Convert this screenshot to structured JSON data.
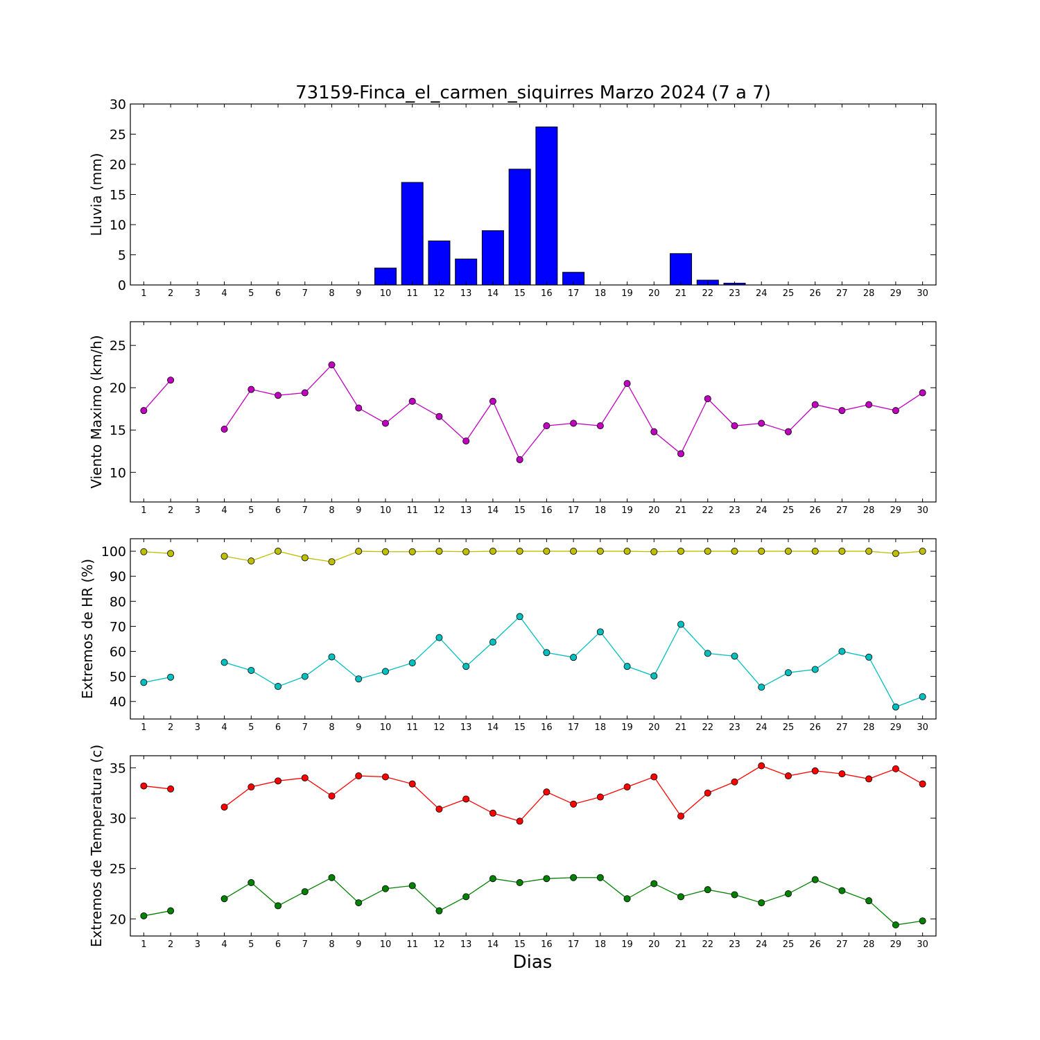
{
  "title": "73159-Finca_el_carmen_siquirres Marzo 2024  (7 a 7)",
  "xlabel": "Dias",
  "chart_data": [
    {
      "type": "bar",
      "ylabel": "Lluvia (mm)",
      "ylim": [
        0,
        30
      ],
      "yticks": [
        0,
        5,
        10,
        15,
        20,
        25,
        30
      ],
      "x": [
        1,
        2,
        3,
        4,
        5,
        6,
        7,
        8,
        9,
        10,
        11,
        12,
        13,
        14,
        15,
        16,
        17,
        18,
        19,
        20,
        21,
        22,
        23,
        24,
        25,
        26,
        27,
        28,
        29,
        30
      ],
      "series": [
        {
          "color": "#0000ff",
          "values": [
            0,
            0,
            0,
            0,
            0,
            0,
            0,
            0,
            0,
            2.8,
            17,
            7.3,
            4.3,
            9,
            19.2,
            26.2,
            2.1,
            0,
            0,
            0,
            5.2,
            0.8,
            0.3,
            0,
            0,
            0,
            0,
            0,
            0,
            0
          ]
        }
      ]
    },
    {
      "type": "line",
      "ylabel": "Viento Maximo (km/h)",
      "ylim": [
        6.5,
        27.8
      ],
      "yticks": [
        10,
        15,
        20,
        25
      ],
      "x": [
        1,
        2,
        3,
        4,
        5,
        6,
        7,
        8,
        9,
        10,
        11,
        12,
        13,
        14,
        15,
        16,
        17,
        18,
        19,
        20,
        21,
        22,
        23,
        24,
        25,
        26,
        27,
        28,
        29,
        30
      ],
      "series": [
        {
          "color": "#bf00bf",
          "values": [
            17.3,
            20.9,
            null,
            15.1,
            19.8,
            19.1,
            19.4,
            22.7,
            17.6,
            15.8,
            18.4,
            16.6,
            13.7,
            18.4,
            11.5,
            15.5,
            15.8,
            15.5,
            20.5,
            14.8,
            12.2,
            18.7,
            15.5,
            15.8,
            14.8,
            18,
            17.3,
            18,
            17.3,
            19.4
          ]
        }
      ]
    },
    {
      "type": "line",
      "ylabel": "Extremos de HR (%)",
      "ylim": [
        33,
        105
      ],
      "yticks": [
        40,
        50,
        60,
        70,
        80,
        90,
        100
      ],
      "x": [
        1,
        2,
        3,
        4,
        5,
        6,
        7,
        8,
        9,
        10,
        11,
        12,
        13,
        14,
        15,
        16,
        17,
        18,
        19,
        20,
        21,
        22,
        23,
        24,
        25,
        26,
        27,
        28,
        29,
        30
      ],
      "series": [
        {
          "color": "#bfbf00",
          "values": [
            99.8,
            99.1,
            null,
            98,
            96.1,
            100,
            97.4,
            95.8,
            100,
            99.8,
            99.8,
            100,
            99.8,
            100,
            100,
            100,
            100,
            100,
            100,
            99.8,
            100,
            100,
            100,
            100,
            100,
            100,
            100,
            100,
            99.1,
            100
          ]
        },
        {
          "color": "#00bfbf",
          "values": [
            47.6,
            49.7,
            null,
            55.6,
            52.4,
            46,
            50,
            57.8,
            49,
            52,
            55.4,
            65.5,
            54,
            63.7,
            73.9,
            59.5,
            57.6,
            67.8,
            54,
            50.2,
            70.8,
            59.2,
            58.1,
            45.7,
            51.5,
            52.8,
            60,
            57.7,
            37.8,
            41.9
          ]
        }
      ]
    },
    {
      "type": "line",
      "ylabel": "Extremos de Temperatura (c)",
      "ylim": [
        18.3,
        36.2
      ],
      "yticks": [
        20,
        25,
        30,
        35
      ],
      "x": [
        1,
        2,
        3,
        4,
        5,
        6,
        7,
        8,
        9,
        10,
        11,
        12,
        13,
        14,
        15,
        16,
        17,
        18,
        19,
        20,
        21,
        22,
        23,
        24,
        25,
        26,
        27,
        28,
        29,
        30
      ],
      "series": [
        {
          "color": "#ff0000",
          "values": [
            33.2,
            32.9,
            null,
            31.1,
            33.1,
            33.7,
            34,
            32.2,
            34.2,
            34.1,
            33.4,
            30.9,
            31.9,
            30.5,
            29.7,
            32.6,
            31.4,
            32.1,
            33.1,
            34.1,
            30.2,
            32.5,
            33.6,
            35.2,
            34.2,
            34.7,
            34.4,
            33.9,
            34.9,
            33.4
          ]
        },
        {
          "color": "#008000",
          "values": [
            20.3,
            20.8,
            null,
            22,
            23.6,
            21.3,
            22.7,
            24.1,
            21.6,
            23,
            23.3,
            20.8,
            22.2,
            24,
            23.6,
            24,
            24.1,
            24.1,
            22,
            23.5,
            22.2,
            22.9,
            22.4,
            21.6,
            22.5,
            23.9,
            22.8,
            21.8,
            19.4,
            19.8
          ]
        }
      ]
    }
  ]
}
